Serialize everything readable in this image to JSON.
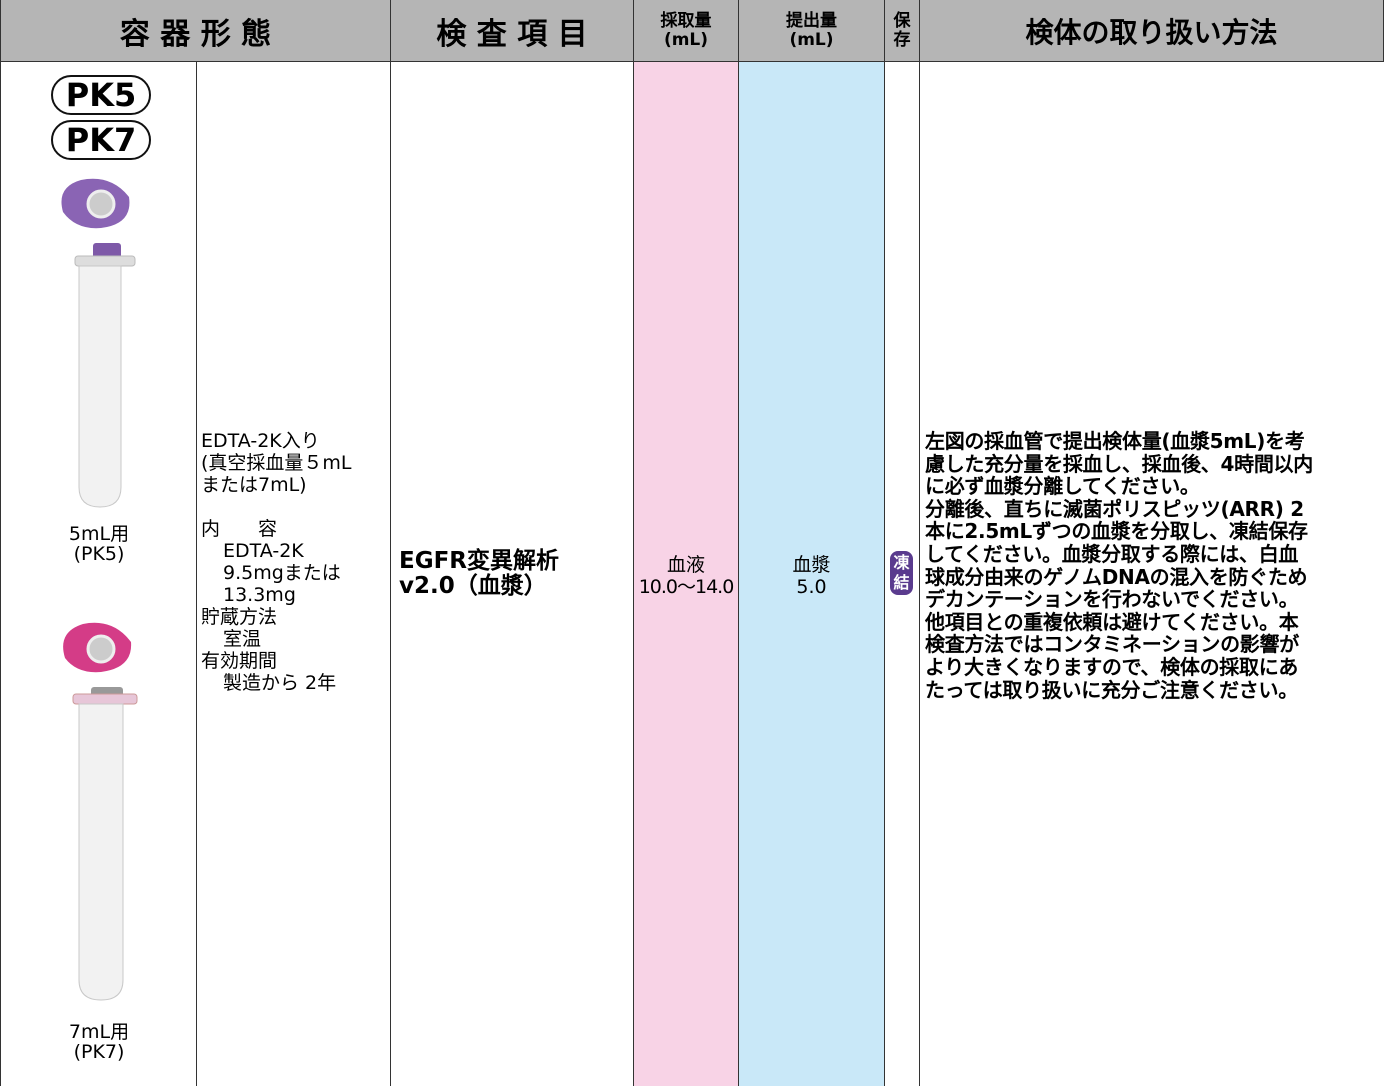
{
  "header": {
    "container_form": "容 器 形 態",
    "test_item": "検 査 項 目",
    "collection": [
      "採取量",
      "(mL)"
    ],
    "submission": [
      "提出量",
      "(mL)"
    ],
    "storage": [
      "保",
      "存"
    ],
    "handling": "検体の取り扱い方法"
  },
  "row": {
    "badges": [
      "PK5",
      "PK7"
    ],
    "tubes": [
      [
        "5mL用",
        "(PK5)"
      ],
      [
        "7mL用",
        "(PK7)"
      ]
    ],
    "container_desc": {
      "intro": [
        "EDTA-2K入り",
        "(真空採血量５mL",
        "または7mL)"
      ],
      "items": [
        {
          "label": "内　　容",
          "values": [
            "EDTA-2K",
            "9.5mgまたは",
            "13.3mg"
          ]
        },
        {
          "label": "貯蔵方法",
          "values": [
            "室温"
          ]
        },
        {
          "label": "有効期間",
          "values": [
            "製造から 2年"
          ]
        }
      ]
    },
    "test_name": [
      "EGFR変異解析",
      "v2.0（血漿）"
    ],
    "collection": [
      "血液",
      "10.0～14.0"
    ],
    "submission": [
      "血漿",
      "5.0"
    ],
    "storage": [
      "凍",
      "結"
    ],
    "handling": [
      "左図の採血管で提出検体量(血漿5mL)を考",
      "慮した充分量を採血し、採血後、4時間以内",
      "に必ず血漿分離してください。",
      "分離後、直ちに滅菌ポリスピッツ(ARR) 2",
      "本に2.5mLずつの血漿を分取し、凍結保存",
      "してください。血漿分取する際には、白血",
      "球成分由来のゲノムDNAの混入を防ぐため",
      "デカンテーションを行わないでください。",
      "他項目との重複依頼は避けてください。本",
      "検査方法ではコンタミネーションの影響が",
      "より大きくなりますので、検体の採取にあ",
      "たっては取り扱いに充分ご注意ください。"
    ]
  }
}
